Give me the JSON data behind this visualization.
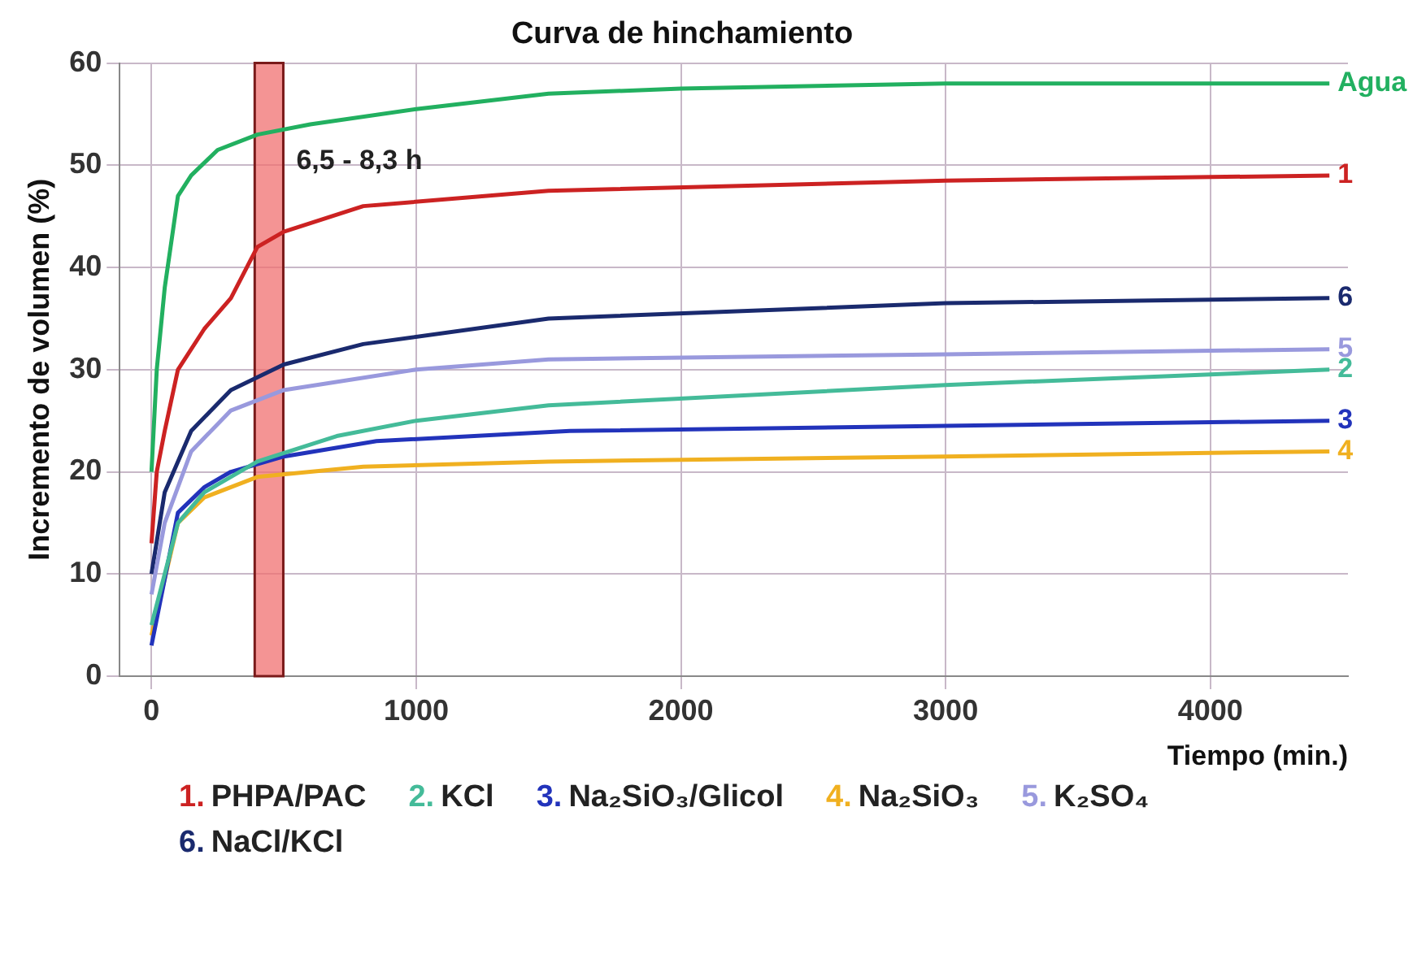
{
  "chart_data": {
    "type": "line",
    "title": "Curva de hinchamiento",
    "xlabel": "Tiempo (min.)",
    "ylabel": "Incremento de volumen (%)",
    "xlim": [
      -120,
      4520
    ],
    "ylim": [
      0,
      60
    ],
    "xticks": [
      0,
      1000,
      2000,
      3000,
      4000
    ],
    "yticks": [
      0,
      10,
      20,
      30,
      40,
      50,
      60
    ],
    "grid": true,
    "marker": "none",
    "legend": "bottom",
    "series": [
      {
        "color": "#22b060",
        "x": [
          0,
          20,
          50,
          100,
          150,
          250,
          400,
          600,
          1000,
          1500,
          2000,
          3000,
          4450
        ],
        "values": [
          20,
          30,
          38,
          47,
          49,
          51.5,
          53,
          54,
          55.5,
          57,
          57.5,
          58,
          58
        ]
      },
      {
        "name": "1. PHPA/PAC",
        "color": "#cc2222",
        "x": [
          0,
          20,
          50,
          100,
          200,
          300,
          400,
          500,
          800,
          1500,
          3000,
          4450
        ],
        "values": [
          13,
          20,
          24,
          30,
          34,
          37,
          42,
          43.5,
          46,
          47.5,
          48.5,
          49
        ]
      },
      {
        "name": "2. KCl",
        "color": "#44bb99",
        "x": [
          0,
          100,
          200,
          400,
          700,
          1000,
          1500,
          3000,
          4450
        ],
        "values": [
          5,
          15,
          18,
          21,
          23.5,
          25,
          26.5,
          28.5,
          30
        ]
      },
      {
        "name": "3. Na₂SiO₃/Glicol",
        "color": "#2233bb",
        "x": [
          0,
          100,
          200,
          300,
          500,
          850,
          1580,
          3000,
          4450
        ],
        "values": [
          3,
          16,
          18.5,
          20,
          21.5,
          23,
          24,
          24.5,
          25
        ]
      },
      {
        "name": "4. Na₂SiO₃",
        "color": "#f0b020",
        "x": [
          0,
          100,
          200,
          400,
          800,
          1500,
          3000,
          4450
        ],
        "values": [
          4,
          15,
          17.5,
          19.5,
          20.5,
          21,
          21.5,
          22
        ]
      },
      {
        "name": "5. K₂SO₄",
        "color": "#9999dd",
        "x": [
          0,
          50,
          150,
          300,
          500,
          1000,
          1500,
          3000,
          4450
        ],
        "values": [
          8,
          15,
          22,
          26,
          28,
          30,
          31,
          31.5,
          32
        ]
      },
      {
        "name": "6. NaCl/KCl",
        "color": "#1a2a6e",
        "x": [
          0,
          50,
          150,
          300,
          500,
          800,
          1500,
          3000,
          4450
        ],
        "values": [
          10,
          18,
          24,
          28,
          30.5,
          32.5,
          35,
          36.5,
          37
        ]
      }
    ],
    "bands": [
      {
        "axis": "x",
        "from": 390,
        "to": 498,
        "label": "6,5 - 8,3 h",
        "color": "#f07070"
      }
    ],
    "annotations": [
      "Agua",
      "1",
      "2",
      "3",
      "4",
      "5",
      "6"
    ]
  }
}
